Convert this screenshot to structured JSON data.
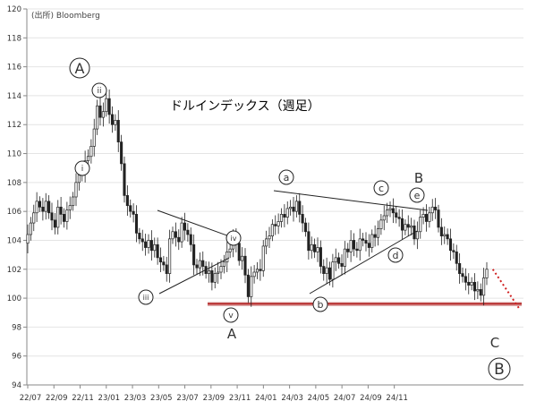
{
  "chart_data": {
    "type": "candlestick",
    "title": "ドルインデックス（週足）",
    "source": "(出所) Bloomberg",
    "ylim": [
      94,
      120
    ],
    "y_ticks": [
      94,
      96,
      98,
      100,
      102,
      104,
      106,
      108,
      110,
      112,
      114,
      116,
      118,
      120
    ],
    "x_ticks": [
      "22/07",
      "22/09",
      "22/11",
      "23/01",
      "23/03",
      "23/05",
      "23/07",
      "23/09",
      "23/11",
      "24/01",
      "24/03",
      "24/05",
      "24/07",
      "24/09",
      "24/11"
    ],
    "weekly_close": [
      104.4,
      105.2,
      105.9,
      106.7,
      106.3,
      106.0,
      106.7,
      105.9,
      105.4,
      104.9,
      106.3,
      105.8,
      105.3,
      106.1,
      106.4,
      107.0,
      108.0,
      108.5,
      108.7,
      109.5,
      109.8,
      110.5,
      111.7,
      113.3,
      112.5,
      112.9,
      113.8,
      112.7,
      112.0,
      112.3,
      110.8,
      109.3,
      107.1,
      106.4,
      106.0,
      105.8,
      104.5,
      104.1,
      103.9,
      103.5,
      104.0,
      103.3,
      103.7,
      102.8,
      102.5,
      102.3,
      101.7,
      104.1,
      104.6,
      104.2,
      103.9,
      105.2,
      104.7,
      104.4,
      103.7,
      102.3,
      102.1,
      102.6,
      102.2,
      101.7,
      101.9,
      101.1,
      101.7,
      101.8,
      102.2,
      102.5,
      103.2,
      103.4,
      104.2,
      103.8,
      102.6,
      102.9,
      101.6,
      100.1,
      101.5,
      101.8,
      102.0,
      101.9,
      103.6,
      104.1,
      104.3,
      105.1,
      105.0,
      105.3,
      105.8,
      105.6,
      106.2,
      106.3,
      106.0,
      106.7,
      105.8,
      105.2,
      104.6,
      103.3,
      103.7,
      103.2,
      103.5,
      102.2,
      101.7,
      102.1,
      101.3,
      102.5,
      102.8,
      102.4,
      102.2,
      103.4,
      103.2,
      104.0,
      103.4,
      103.3,
      104.1,
      104.0,
      103.8,
      103.5,
      104.4,
      104.2,
      104.8,
      105.4,
      105.7,
      106.1,
      106.2,
      105.9,
      105.6,
      105.5,
      104.7,
      105.1,
      104.9,
      105.0,
      104.1,
      104.6,
      105.6,
      105.8,
      105.3,
      105.9,
      106.3,
      106.1,
      104.9,
      104.3,
      104.4,
      104.1,
      103.3,
      103.2,
      102.4,
      101.7,
      101.5,
      101.1,
      100.9,
      101.1,
      100.5,
      100.6,
      100.2,
      101.4,
      102.0
    ],
    "projection": [
      [
        102.0,
        2
      ],
      [
        99.2,
        11
      ]
    ],
    "support_level": 99.6,
    "wave_labels": {
      "A_big": "A",
      "i": "i",
      "ii": "ii",
      "iii": "iii",
      "iv": "iv",
      "v": "v",
      "A": "A",
      "a": "a",
      "b": "b",
      "c": "c",
      "d": "d",
      "e": "e",
      "B": "B",
      "C": "C",
      "B_big": "B"
    }
  }
}
